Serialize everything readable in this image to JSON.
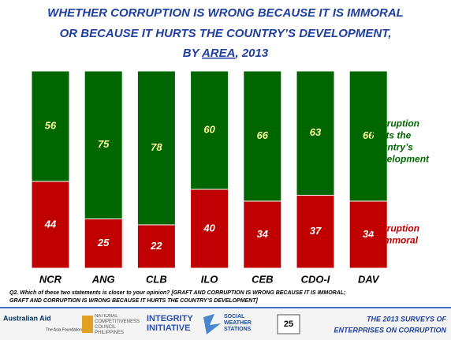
{
  "chart_data": {
    "type": "stacked_bar",
    "title_lines": [
      "WHETHER CORRUPTION IS WRONG BECAUSE IT IS IMMORAL",
      "OR BECAUSE IT HURTS THE COUNTRY’S DEVELOPMENT,"
    ],
    "title_last": {
      "before": "BY ",
      "underlined": "AREA",
      "after": ", 2013"
    },
    "categories": [
      "NCR",
      "ANG",
      "CLB",
      "ILO",
      "CEB",
      "CDO-I",
      "DAV"
    ],
    "series": [
      {
        "name": "Corruption is immoral",
        "color": "#c00000",
        "values": [
          44,
          25,
          22,
          40,
          34,
          37,
          34
        ]
      },
      {
        "name": "Corruption hurts the country’s development",
        "color": "#006600",
        "values": [
          56,
          75,
          78,
          60,
          66,
          63,
          66
        ]
      }
    ],
    "ylim": [
      0,
      100
    ],
    "note_lines": [
      "Q2. Which of these two statements is closer to your opinion? [GRAFT AND CORRUPTION IS WRONG BECAUSE IT IS IMMORAL;",
      "GRAFT AND CORRUPTION IS WRONG BECAUSE IT HURTS THE COUNTRY’S DEVELOPMENT]"
    ]
  },
  "footer": {
    "logos": [
      "Australian Aid",
      "The Asia Foundation",
      "NATIONAL COMPETITIVENESS COUNCIL PHILIPPINES",
      "INTEGRITY INITIATIVE",
      "SOCIAL WEATHER STATIONS"
    ],
    "page": "25",
    "survey_lines": [
      "THE 2013 SURVEYS OF",
      "ENTERPRISES ON CORRUPTION"
    ]
  }
}
